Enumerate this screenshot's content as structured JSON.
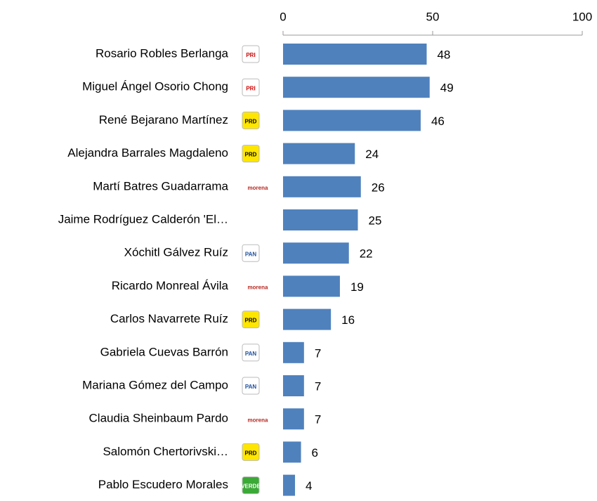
{
  "chart_data": {
    "type": "bar",
    "orientation": "horizontal",
    "categories": [
      "Rosario Robles Berlanga",
      "Miguel Ángel Osorio Chong",
      "René Bejarano Martínez",
      "Alejandra Barrales Magdaleno",
      "Martí Batres Guadarrama",
      "Jaime Rodríguez Calderón 'El…",
      "Xóchitl Gálvez Ruíz",
      "Ricardo Monreal Ávila",
      "Carlos Navarrete Ruíz",
      "Gabriela Cuevas Barrón",
      "Mariana Gómez del Campo",
      "Claudia Sheinbaum Pardo",
      "Salomón Chertorivski…",
      "Pablo Escudero Morales"
    ],
    "values": [
      48,
      49,
      46,
      24,
      26,
      25,
      22,
      19,
      16,
      7,
      7,
      7,
      6,
      4
    ],
    "logos": [
      "PRI",
      "PRI",
      "PRD",
      "PRD",
      "morena",
      null,
      "PAN",
      "morena",
      "PRD",
      "PAN",
      "PAN",
      "morena",
      "PRD",
      "VERDE"
    ],
    "color": "#4f81bd",
    "xlim": [
      0,
      100
    ],
    "xticks": [
      0,
      50,
      100
    ]
  }
}
